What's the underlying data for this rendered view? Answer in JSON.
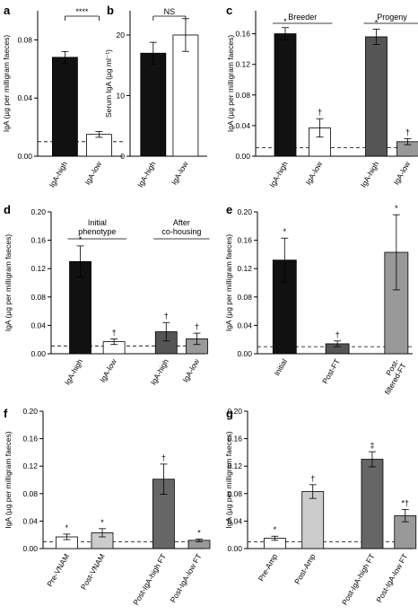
{
  "chart_data": [
    {
      "panel": "a",
      "type": "bar",
      "ylabel": "IgA (µg per milligram faeces)",
      "ylim": [
        0,
        0.1
      ],
      "yticks": [
        "0.00",
        "0.04",
        "0.08"
      ],
      "dashed_line": 0.01,
      "categories": [
        "IgA-high",
        "IgA-low"
      ],
      "values": [
        0.068,
        0.015
      ],
      "errors": [
        0.004,
        0.002
      ],
      "fills": [
        "#111111",
        "#ffffff"
      ],
      "marks": [
        "",
        ""
      ],
      "bracket": {
        "from": 0,
        "to": 1,
        "label": "****"
      },
      "groups": []
    },
    {
      "panel": "b",
      "type": "bar",
      "ylabel": "Serum IgA (µg ml⁻¹)",
      "ylim": [
        0,
        24
      ],
      "yticks": [
        "0",
        "10",
        "20"
      ],
      "dashed_line": null,
      "categories": [
        "IgA-high",
        "IgA-low"
      ],
      "values": [
        17,
        20
      ],
      "errors": [
        1.8,
        2.7
      ],
      "fills": [
        "#111111",
        "#ffffff"
      ],
      "marks": [
        "",
        ""
      ],
      "bracket": {
        "from": 0,
        "to": 1,
        "label": "NS"
      },
      "groups": []
    },
    {
      "panel": "c",
      "type": "bar",
      "ylabel": "IgA (µg per milligram faeces)",
      "ylim": [
        0,
        0.19
      ],
      "yticks": [
        "0.00",
        "0.04",
        "0.08",
        "0.12",
        "0.16"
      ],
      "dashed_line": 0.011,
      "categories": [
        "IgA-high",
        "IgA-low",
        "IgA-high",
        "IgA-low"
      ],
      "values": [
        0.16,
        0.037,
        0.156,
        0.019
      ],
      "errors": [
        0.008,
        0.012,
        0.01,
        0.004
      ],
      "fills": [
        "#111111",
        "#ffffff",
        "#555555",
        "#999999"
      ],
      "marks": [
        "*",
        "†",
        "*",
        "†"
      ],
      "bracket": null,
      "groups": [
        {
          "label": "Breeder",
          "from": 0,
          "to": 1
        },
        {
          "label": "Progeny",
          "from": 2,
          "to": 3
        }
      ]
    },
    {
      "panel": "d",
      "type": "bar",
      "ylabel": "IgA (µg per milligram faeces)",
      "ylim": [
        0,
        0.2
      ],
      "yticks": [
        "0.00",
        "0.04",
        "0.08",
        "0.12",
        "0.16",
        "0.20"
      ],
      "dashed_line": 0.011,
      "categories": [
        "IgA-high",
        "IgA-low",
        "IgA-high",
        "IgA-low"
      ],
      "values": [
        0.13,
        0.017,
        0.031,
        0.021
      ],
      "errors": [
        0.022,
        0.004,
        0.013,
        0.008
      ],
      "fills": [
        "#111111",
        "#ffffff",
        "#555555",
        "#999999"
      ],
      "marks": [
        "*",
        "†",
        "†",
        "†"
      ],
      "bracket": null,
      "groups": [
        {
          "label": "Initial\nphenotype",
          "from": 0,
          "to": 1
        },
        {
          "label": "After\nco-housing",
          "from": 2,
          "to": 3
        }
      ]
    },
    {
      "panel": "e",
      "type": "bar",
      "ylabel": "IgA (µg per milligram faeces)",
      "ylim": [
        0,
        0.2
      ],
      "yticks": [
        "0.00",
        "0.04",
        "0.08",
        "0.12",
        "0.16",
        "0.20"
      ],
      "dashed_line": 0.01,
      "categories": [
        "Initial",
        "Post-FT",
        "Post-\nfiltered-FT"
      ],
      "values": [
        0.132,
        0.014,
        0.143
      ],
      "errors": [
        0.031,
        0.004,
        0.053
      ],
      "fills": [
        "#111111",
        "#555555",
        "#999999"
      ],
      "marks": [
        "*",
        "†",
        "*"
      ],
      "bracket": null,
      "groups": []
    },
    {
      "panel": "f",
      "type": "bar",
      "ylabel": "IgA (µg per milligram faeces)",
      "ylim": [
        0,
        0.2
      ],
      "yticks": [
        "0.00",
        "0.04",
        "0.08",
        "0.12",
        "0.16",
        "0.20"
      ],
      "dashed_line": 0.01,
      "categories": [
        "Pre-VNAM",
        "Post-VNAM",
        "Post-IgA-high FT",
        "Post-IgA-low FT"
      ],
      "values": [
        0.017,
        0.023,
        0.101,
        0.012
      ],
      "errors": [
        0.004,
        0.006,
        0.022,
        0.002
      ],
      "fills": [
        "#ffffff",
        "#cccccc",
        "#666666",
        "#999999"
      ],
      "marks": [
        "*",
        "*",
        "†",
        "*"
      ],
      "bracket": null,
      "groups": []
    },
    {
      "panel": "g",
      "type": "bar",
      "ylabel": "IgA (µg per milligram faeces)",
      "ylim": [
        0,
        0.2
      ],
      "yticks": [
        "0.00",
        "0.04",
        "0.08",
        "0.12",
        "0.16",
        "0.20"
      ],
      "dashed_line": 0.01,
      "categories": [
        "Pre-Amp",
        "Post-Amp",
        "Post-IgA-high FT",
        "Post-IgA-low FT"
      ],
      "values": [
        0.015,
        0.083,
        0.13,
        0.048
      ],
      "errors": [
        0.003,
        0.01,
        0.011,
        0.009
      ],
      "fills": [
        "#ffffff",
        "#cccccc",
        "#666666",
        "#999999"
      ],
      "marks": [
        "*",
        "†",
        "‡",
        "*†"
      ],
      "bracket": null,
      "groups": []
    }
  ]
}
